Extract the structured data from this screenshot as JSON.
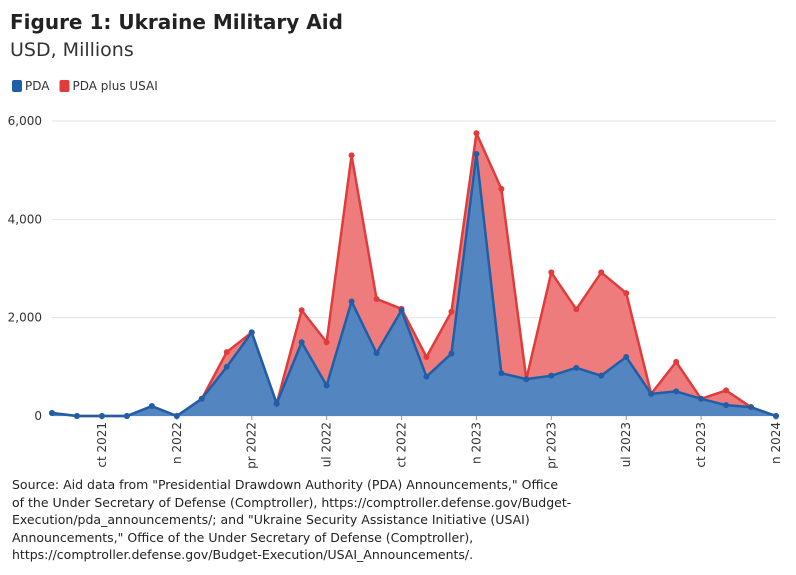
{
  "chart_data": {
    "type": "area",
    "title": "Figure 1: Ukraine Military Aid",
    "subtitle": "USD, Millions",
    "source": "Source: Aid data from \"Presidential Drawdown Authority (PDA) Announcements,\" Office of the Under Secretary of Defense (Comptroller), https://comptroller.defense.gov/Budget-Execution/pda_announcements/; and \"Ukraine Security Assistance Initiative (USAI) Announcements,\" Office of the Under Secretary of Defense (Comptroller), https://comptroller.defense.gov/Budget-Execution/USAI_Announcements/.",
    "x": [
      "2021-08",
      "2021-09",
      "2021-10",
      "2021-11",
      "2021-12",
      "2022-01",
      "2022-02",
      "2022-03",
      "2022-04",
      "2022-05",
      "2022-06",
      "2022-07",
      "2022-08",
      "2022-09",
      "2022-10",
      "2022-11",
      "2022-12",
      "2023-01",
      "2023-02",
      "2023-03",
      "2023-04",
      "2023-05",
      "2023-06",
      "2023-07",
      "2023-08",
      "2023-09",
      "2023-10",
      "2023-11",
      "2023-12",
      "2024-01"
    ],
    "series": [
      {
        "name": "PDA plus USAI",
        "color": "#e03c3c",
        "fill": "#ee7575",
        "values": [
          60,
          0,
          0,
          0,
          200,
          0,
          350,
          1300,
          1700,
          250,
          2150,
          1500,
          5300,
          2380,
          2180,
          1200,
          2120,
          5750,
          4620,
          750,
          2920,
          2170,
          2920,
          2500,
          450,
          1100,
          350,
          520,
          180,
          0
        ]
      },
      {
        "name": "PDA",
        "color": "#1f5fa8",
        "fill": "#4a86c5",
        "values": [
          60,
          0,
          0,
          0,
          200,
          0,
          350,
          1000,
          1700,
          250,
          1500,
          620,
          2330,
          1280,
          2150,
          800,
          1270,
          5330,
          870,
          750,
          820,
          980,
          820,
          1200,
          450,
          500,
          350,
          220,
          180,
          0
        ]
      }
    ],
    "legend_order": [
      1,
      0
    ],
    "xlim": [
      "2021-08",
      "2024-01"
    ],
    "xticks": [
      {
        "value": "2021-10",
        "label": "ct 2021"
      },
      {
        "value": "2022-01",
        "label": "n 2022"
      },
      {
        "value": "2022-04",
        "label": "pr 2022"
      },
      {
        "value": "2022-07",
        "label": "ul 2022"
      },
      {
        "value": "2022-10",
        "label": "ct 2022"
      },
      {
        "value": "2023-01",
        "label": "n 2023"
      },
      {
        "value": "2023-04",
        "label": "pr 2023"
      },
      {
        "value": "2023-07",
        "label": "ul 2023"
      },
      {
        "value": "2023-10",
        "label": "ct 2023"
      },
      {
        "value": "2024-01",
        "label": "n 2024"
      }
    ],
    "ylim": [
      0,
      6000
    ],
    "yticks": [
      0,
      {
        "value": 2000,
        "label": "2,000"
      },
      {
        "value": 4000,
        "label": "4,000"
      },
      {
        "value": 6000,
        "label": "6,000"
      }
    ],
    "grid": true
  }
}
